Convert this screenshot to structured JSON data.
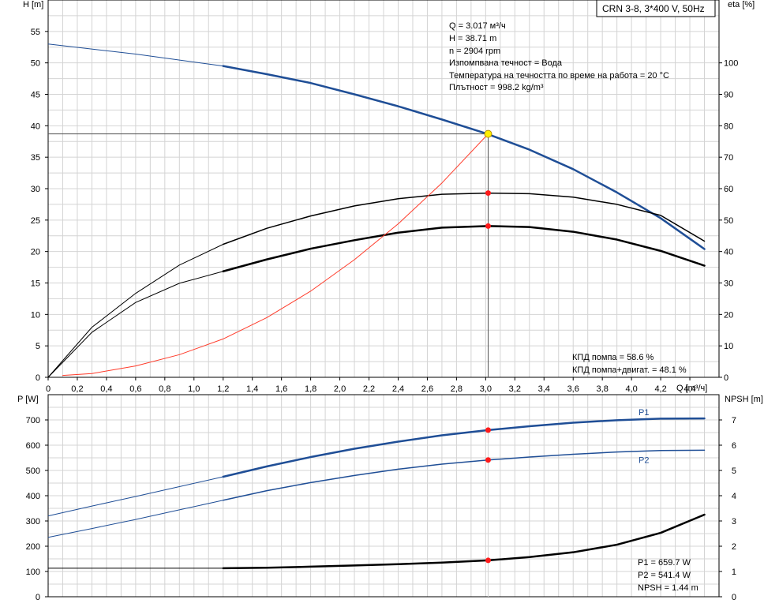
{
  "model_label": "CRN 3-8, 3*400 V, 50Hz",
  "chart_data": [
    {
      "type": "line",
      "title": "",
      "xlabel": "Q [m³/ч]",
      "ylabel": "H [m]",
      "y2label": "eta [%]",
      "xlim": [
        0,
        4.6
      ],
      "ylim": [
        0,
        60
      ],
      "y2lim": [
        0,
        120
      ],
      "grid": true,
      "x_ticks": [
        "0",
        "0,2",
        "0,4",
        "0,6",
        "0,8",
        "1,0",
        "1,2",
        "1,4",
        "1,6",
        "1,8",
        "2,0",
        "2,2",
        "2,4",
        "2,6",
        "2,8",
        "3,0",
        "3,2",
        "3,4",
        "3,6",
        "3,8",
        "4,0",
        "4,2",
        "4,4"
      ],
      "y_ticks": [
        "0",
        "5",
        "10",
        "15",
        "20",
        "25",
        "30",
        "35",
        "40",
        "45",
        "50",
        "55"
      ],
      "y2_ticks": [
        "0",
        "10",
        "20",
        "30",
        "40",
        "50",
        "60",
        "70",
        "80",
        "90",
        "100"
      ],
      "series": [
        {
          "label": "H",
          "axis": "left",
          "color": "#1f4e96",
          "x": [
            0,
            0.6,
            1.2,
            1.5,
            1.8,
            2.1,
            2.4,
            2.7,
            3.0,
            3.3,
            3.6,
            3.9,
            4.2,
            4.5
          ],
          "y": [
            53.0,
            51.4,
            49.5,
            48.2,
            46.8,
            45.0,
            43.1,
            41.0,
            38.8,
            36.2,
            33.1,
            29.4,
            25.3,
            20.4
          ]
        },
        {
          "label": "eta pump",
          "axis": "right",
          "color": "#000000",
          "x": [
            0,
            0.3,
            0.6,
            0.9,
            1.2,
            1.5,
            1.8,
            2.1,
            2.4,
            2.7,
            3.017,
            3.3,
            3.6,
            3.9,
            4.2,
            4.5
          ],
          "y": [
            0,
            15.9,
            26.7,
            35.7,
            42.3,
            47.4,
            51.3,
            54.5,
            56.8,
            58.2,
            58.6,
            58.4,
            57.3,
            55.0,
            51.5,
            43.3
          ]
        },
        {
          "label": "eta pump+motor",
          "axis": "right",
          "color": "#000000",
          "x": [
            0,
            0.3,
            0.6,
            0.9,
            1.2,
            1.5,
            1.8,
            2.1,
            2.4,
            2.7,
            3.017,
            3.3,
            3.6,
            3.9,
            4.2,
            4.5
          ],
          "y": [
            0,
            14.3,
            23.8,
            29.9,
            33.7,
            37.5,
            40.9,
            43.6,
            46.0,
            47.6,
            48.1,
            47.8,
            46.3,
            43.8,
            40.2,
            35.5
          ]
        },
        {
          "label": "system curve",
          "axis": "left",
          "color": "#ff3b2a",
          "x": [
            0.1,
            0.3,
            0.6,
            0.9,
            1.2,
            1.5,
            1.8,
            2.1,
            2.4,
            2.7,
            3.017
          ],
          "y": [
            0.3,
            0.6,
            1.8,
            3.6,
            6.1,
            9.5,
            13.7,
            18.7,
            24.4,
            30.9,
            38.71
          ]
        }
      ],
      "duty_point": {
        "Q": 3.017,
        "H": 38.71
      },
      "info_lines": [
        "Q = 3.017 м³/ч",
        "H = 38.71 m",
        "n = 2904 rpm",
        "Изпомпвана течност = Вода",
        "Температура на течността по време на работа = 20 °C",
        "Плътност = 998.2 kg/m³"
      ],
      "result_lines": [
        "КПД помпа = 58.6 %",
        "КПД помпа+двигат. = 48.1 %"
      ]
    },
    {
      "type": "line",
      "title": "",
      "xlabel": "",
      "ylabel": "P [W]",
      "y2label": "NPSH [m]",
      "xlim": [
        0,
        4.6
      ],
      "ylim": [
        0,
        800
      ],
      "y2lim": [
        0,
        8
      ],
      "grid": true,
      "y_ticks": [
        "0",
        "100",
        "200",
        "300",
        "400",
        "500",
        "600",
        "700"
      ],
      "y2_ticks": [
        "0",
        "1",
        "2",
        "3",
        "4",
        "5",
        "6",
        "7"
      ],
      "series": [
        {
          "label": "P1",
          "axis": "left",
          "color": "#1f4e96",
          "x": [
            0,
            0.3,
            0.6,
            0.9,
            1.2,
            1.5,
            1.8,
            2.1,
            2.4,
            2.7,
            3.017,
            3.3,
            3.6,
            3.9,
            4.2,
            4.5
          ],
          "y": [
            320,
            359,
            397,
            436,
            475,
            516,
            553,
            586,
            614,
            639,
            659.7,
            675,
            689,
            699,
            705,
            706
          ]
        },
        {
          "label": "P2",
          "axis": "left",
          "color": "#1f4e96",
          "x": [
            0,
            0.3,
            0.6,
            0.9,
            1.2,
            1.5,
            1.8,
            2.1,
            2.4,
            2.7,
            3.017,
            3.3,
            3.6,
            3.9,
            4.2,
            4.5
          ],
          "y": [
            235,
            270,
            306,
            344,
            382,
            420,
            452,
            480,
            505,
            525,
            541.4,
            553,
            564,
            573,
            579,
            580
          ]
        },
        {
          "label": "NPSH",
          "axis": "right",
          "color": "#000000",
          "x": [
            0,
            0.6,
            1.2,
            1.5,
            1.8,
            2.1,
            2.4,
            2.7,
            3.017,
            3.3,
            3.6,
            3.9,
            4.2,
            4.5
          ],
          "y": [
            1.13,
            1.13,
            1.13,
            1.15,
            1.19,
            1.24,
            1.29,
            1.35,
            1.44,
            1.57,
            1.76,
            2.06,
            2.53,
            3.25
          ]
        }
      ],
      "duty_point": {
        "Q": 3.017
      },
      "result_lines": [
        "P1 = 659.7 W",
        "P2 = 541.4 W",
        "NPSH = 1.44 m"
      ]
    }
  ]
}
